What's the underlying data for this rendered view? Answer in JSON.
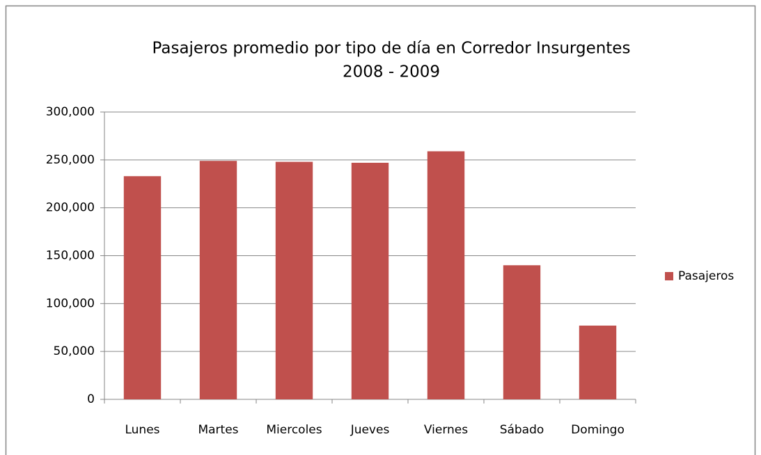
{
  "chart_data": {
    "type": "bar",
    "title": [
      "Pasajeros promedio por tipo de día en Corredor Insurgentes",
      "2008 - 2009"
    ],
    "categories": [
      "Lunes",
      "Martes",
      "Miercoles",
      "Jueves",
      "Viernes",
      "Sábado",
      "Domingo"
    ],
    "series": [
      {
        "name": "Pasajeros",
        "color": "#c0504d",
        "values": [
          233000,
          249000,
          248000,
          247000,
          259000,
          140000,
          77000
        ]
      }
    ],
    "ylim": [
      0,
      300000
    ],
    "yticks": [
      0,
      {
        "value": 50000,
        "label": "50,000"
      },
      {
        "value": 100000,
        "label": "100,000"
      },
      {
        "value": 150000,
        "label": "150,000"
      },
      {
        "value": 200000,
        "label": "200,000"
      },
      {
        "value": 250000,
        "label": "250,000"
      },
      {
        "value": 300000,
        "label": "300,000"
      }
    ],
    "grid": true,
    "legend": "right"
  }
}
